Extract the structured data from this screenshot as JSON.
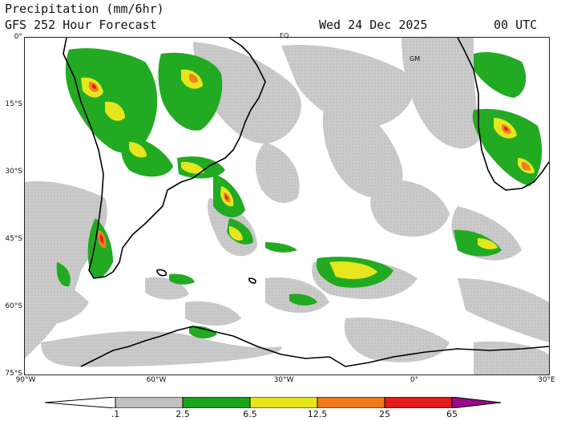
{
  "header": {
    "line1": "Precipitation (mm/6hr)",
    "line2": "GFS 252 Hour Forecast",
    "date": "Wed 24 Dec 2025",
    "time": "00 UTC"
  },
  "map": {
    "lat_labels": [
      "0°",
      "15°S",
      "30°S",
      "45°S",
      "60°S",
      "75°S"
    ],
    "lon_labels": [
      "90°W",
      "60°W",
      "30°W",
      "0°",
      "30°E"
    ],
    "markers": {
      "equator": "EQ",
      "greenwich": "GM"
    }
  },
  "colorbar": {
    "labels": [
      ".1",
      "2.5",
      "6.5",
      "12.5",
      "25",
      "65"
    ],
    "colors": [
      "#ffffff",
      "#c0c0c0",
      "#1aa41a",
      "#e5e51a",
      "#f07a1a",
      "#e51a1a",
      "#9a0a8a"
    ]
  },
  "palette": {
    "land_outline": "#000000",
    "light_precip": "#c8c8c8",
    "moderate": "#22aa22",
    "heavy": "#e6e61e",
    "very_heavy": "#f08020",
    "extreme": "#e02020"
  }
}
